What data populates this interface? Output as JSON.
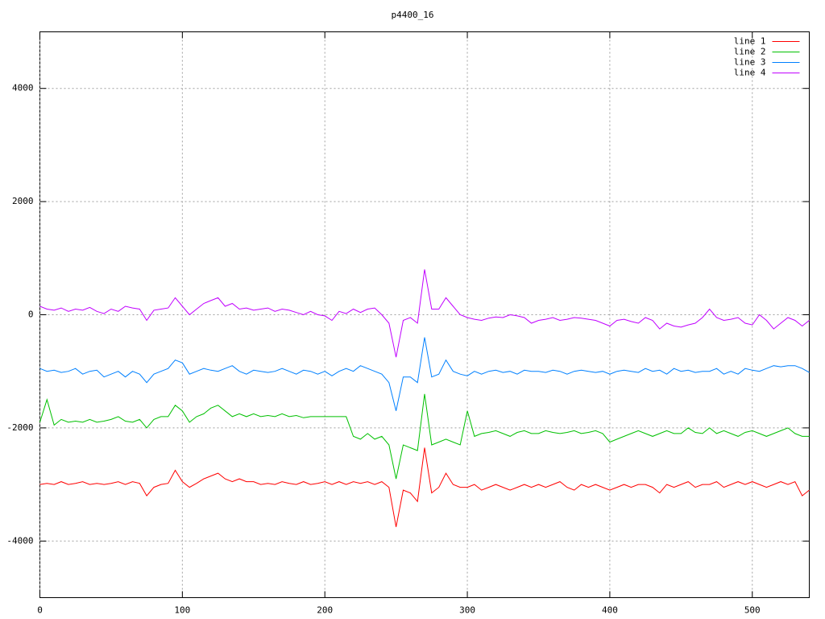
{
  "chart_data": {
    "type": "line",
    "title": "p4400_16",
    "x": [
      0,
      5,
      10,
      15,
      20,
      25,
      30,
      35,
      40,
      45,
      50,
      55,
      60,
      65,
      70,
      75,
      80,
      85,
      90,
      95,
      100,
      105,
      110,
      115,
      120,
      125,
      130,
      135,
      140,
      145,
      150,
      155,
      160,
      165,
      170,
      175,
      180,
      185,
      190,
      195,
      200,
      205,
      210,
      215,
      220,
      225,
      230,
      235,
      240,
      245,
      250,
      255,
      260,
      265,
      270,
      275,
      280,
      285,
      290,
      295,
      300,
      305,
      310,
      315,
      320,
      325,
      330,
      335,
      340,
      345,
      350,
      355,
      360,
      365,
      370,
      375,
      380,
      385,
      390,
      395,
      400,
      405,
      410,
      415,
      420,
      425,
      430,
      435,
      440,
      445,
      450,
      455,
      460,
      465,
      470,
      475,
      480,
      485,
      490,
      495,
      500,
      505,
      510,
      515,
      520,
      525,
      530,
      535,
      540
    ],
    "series": [
      {
        "name": "line 1",
        "color": "#ff0000",
        "values": [
          -3000,
          -2980,
          -3000,
          -2950,
          -3000,
          -2980,
          -2950,
          -3000,
          -2980,
          -3000,
          -2980,
          -2950,
          -3000,
          -2950,
          -2980,
          -3200,
          -3050,
          -3000,
          -2980,
          -2750,
          -2950,
          -3050,
          -2980,
          -2900,
          -2850,
          -2800,
          -2900,
          -2950,
          -2900,
          -2950,
          -2950,
          -3000,
          -2980,
          -3000,
          -2950,
          -2980,
          -3000,
          -2950,
          -3000,
          -2980,
          -2950,
          -3000,
          -2950,
          -3000,
          -2950,
          -2980,
          -2950,
          -3000,
          -2950,
          -3050,
          -3750,
          -3100,
          -3150,
          -3300,
          -2350,
          -3150,
          -3050,
          -2800,
          -3000,
          -3050,
          -3050,
          -3000,
          -3100,
          -3050,
          -3000,
          -3050,
          -3100,
          -3050,
          -3000,
          -3050,
          -3000,
          -3050,
          -3000,
          -2950,
          -3050,
          -3100,
          -3000,
          -3050,
          -3000,
          -3050,
          -3100,
          -3050,
          -3000,
          -3050,
          -3000,
          -3000,
          -3050,
          -3150,
          -3000,
          -3050,
          -3000,
          -2950,
          -3050,
          -3000,
          -3000,
          -2950,
          -3050,
          -3000,
          -2950,
          -3000,
          -2950,
          -3000,
          -3050,
          -3000,
          -2950,
          -3000,
          -2950,
          -3200,
          -3100
        ]
      },
      {
        "name": "line 2",
        "color": "#00c000",
        "values": [
          -1900,
          -1500,
          -1950,
          -1850,
          -1900,
          -1880,
          -1900,
          -1850,
          -1900,
          -1880,
          -1850,
          -1800,
          -1880,
          -1900,
          -1850,
          -2000,
          -1850,
          -1800,
          -1800,
          -1600,
          -1700,
          -1900,
          -1800,
          -1750,
          -1650,
          -1600,
          -1700,
          -1800,
          -1750,
          -1800,
          -1750,
          -1800,
          -1780,
          -1800,
          -1750,
          -1800,
          -1780,
          -1820,
          -1800,
          -1800,
          -1800,
          -1800,
          -1800,
          -1800,
          -2150,
          -2200,
          -2100,
          -2200,
          -2150,
          -2300,
          -2900,
          -2300,
          -2350,
          -2400,
          -1400,
          -2300,
          -2250,
          -2200,
          -2250,
          -2300,
          -1700,
          -2150,
          -2100,
          -2080,
          -2050,
          -2100,
          -2150,
          -2080,
          -2050,
          -2100,
          -2100,
          -2050,
          -2080,
          -2100,
          -2080,
          -2050,
          -2100,
          -2080,
          -2050,
          -2100,
          -2250,
          -2200,
          -2150,
          -2100,
          -2050,
          -2100,
          -2150,
          -2100,
          -2050,
          -2100,
          -2100,
          -2000,
          -2080,
          -2100,
          -2000,
          -2100,
          -2050,
          -2100,
          -2150,
          -2080,
          -2050,
          -2100,
          -2150,
          -2100,
          -2050,
          -2000,
          -2100,
          -2150,
          -2150
        ]
      },
      {
        "name": "line 3",
        "color": "#0080ff",
        "values": [
          -950,
          -1000,
          -980,
          -1020,
          -1000,
          -950,
          -1050,
          -1000,
          -980,
          -1100,
          -1050,
          -1000,
          -1100,
          -1000,
          -1050,
          -1200,
          -1050,
          -1000,
          -950,
          -800,
          -850,
          -1050,
          -1000,
          -950,
          -980,
          -1000,
          -950,
          -900,
          -1000,
          -1050,
          -980,
          -1000,
          -1020,
          -1000,
          -950,
          -1000,
          -1050,
          -980,
          -1000,
          -1050,
          -1000,
          -1080,
          -1000,
          -950,
          -1000,
          -900,
          -950,
          -1000,
          -1050,
          -1200,
          -1700,
          -1100,
          -1100,
          -1200,
          -400,
          -1100,
          -1050,
          -800,
          -1000,
          -1050,
          -1080,
          -1000,
          -1050,
          -1000,
          -980,
          -1020,
          -1000,
          -1050,
          -980,
          -1000,
          -1000,
          -1020,
          -980,
          -1000,
          -1050,
          -1000,
          -980,
          -1000,
          -1020,
          -1000,
          -1050,
          -1000,
          -980,
          -1000,
          -1020,
          -950,
          -1000,
          -980,
          -1050,
          -950,
          -1000,
          -980,
          -1020,
          -1000,
          -1000,
          -950,
          -1050,
          -1000,
          -1050,
          -950,
          -980,
          -1000,
          -950,
          -900,
          -920,
          -900,
          -900,
          -950,
          -1020
        ]
      },
      {
        "name": "line 4",
        "color": "#c000ff",
        "values": [
          150,
          100,
          80,
          120,
          60,
          100,
          80,
          130,
          60,
          20,
          100,
          60,
          150,
          120,
          100,
          -100,
          80,
          100,
          120,
          300,
          150,
          0,
          100,
          200,
          250,
          300,
          150,
          200,
          100,
          120,
          80,
          100,
          120,
          60,
          100,
          80,
          40,
          0,
          60,
          0,
          -20,
          -100,
          60,
          20,
          100,
          40,
          100,
          120,
          0,
          -150,
          -750,
          -100,
          -50,
          -150,
          800,
          100,
          100,
          300,
          150,
          0,
          -50,
          -80,
          -100,
          -60,
          -40,
          -50,
          0,
          -20,
          -50,
          -150,
          -100,
          -80,
          -50,
          -100,
          -80,
          -50,
          -60,
          -80,
          -100,
          -150,
          -200,
          -100,
          -80,
          -120,
          -150,
          -50,
          -100,
          -250,
          -150,
          -200,
          -220,
          -180,
          -150,
          -50,
          100,
          -50,
          -100,
          -80,
          -50,
          -150,
          -180,
          0,
          -100,
          -250,
          -150,
          -50,
          -100,
          -200,
          -100
        ]
      }
    ],
    "xlim": [
      0,
      540
    ],
    "ylim": [
      -5000,
      5000
    ],
    "xticks": [
      0,
      100,
      200,
      300,
      400,
      500
    ],
    "yticks": [
      -4000,
      -2000,
      0,
      2000,
      4000
    ],
    "grid": true,
    "legend": "top-right"
  }
}
